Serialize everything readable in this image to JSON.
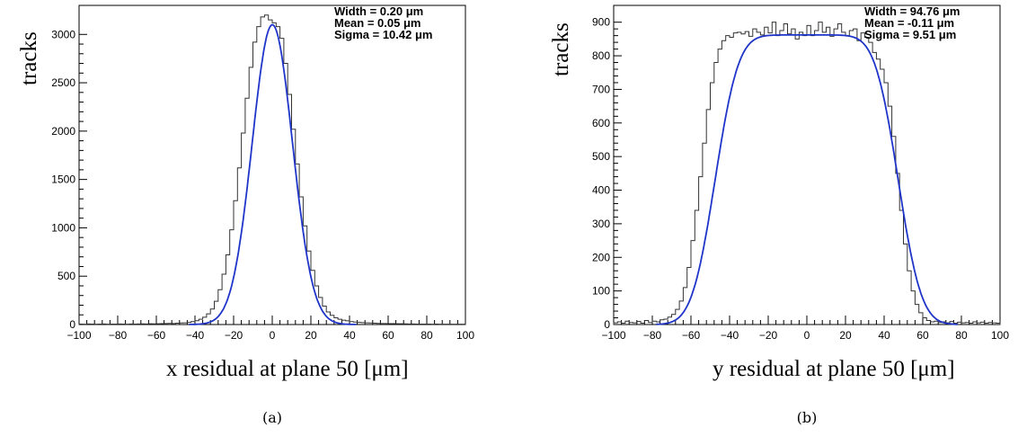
{
  "chart_data": [
    {
      "type": "histogram",
      "caption": "(a)",
      "ylabel": "tracks",
      "xlabel": "x residual at plane 50 [μm]",
      "xlim": [
        -100,
        100
      ],
      "ylim": [
        0,
        3300
      ],
      "xticks": [
        -100,
        -80,
        -60,
        -40,
        -20,
        0,
        20,
        40,
        60,
        80,
        100
      ],
      "yticks": [
        0,
        500,
        1000,
        1500,
        2000,
        2500,
        3000
      ],
      "stats": [
        "Width = 0.20 μm",
        "Mean = 0.05  μm",
        "Sigma  = 10.42 μm"
      ],
      "fit": {
        "model": "gaussian-smeared box",
        "width": 0.2,
        "mean": 0.05,
        "sigma": 10.42,
        "peak": 3100,
        "color": "#1f35c9"
      },
      "hist_bin_width": 2,
      "hist_color": "#333333",
      "series": [
        {
          "type": "histogram",
          "x": [
            -99,
            -97,
            -95,
            -93,
            -91,
            -89,
            -87,
            -85,
            -83,
            -81,
            -79,
            -77,
            -75,
            -73,
            -71,
            -69,
            -67,
            -65,
            -63,
            -61,
            -59,
            -57,
            -55,
            -53,
            -51,
            -49,
            -47,
            -45,
            -43,
            -41,
            -39,
            -37,
            -35,
            -33,
            -31,
            -29,
            -27,
            -25,
            -23,
            -21,
            -19,
            -17,
            -15,
            -13,
            -11,
            -9,
            -7,
            -5,
            -3,
            -1,
            1,
            3,
            5,
            7,
            9,
            11,
            13,
            15,
            17,
            19,
            21,
            23,
            25,
            27,
            29,
            31,
            33,
            35,
            37,
            39,
            41,
            43,
            45,
            47,
            49,
            51,
            53,
            55,
            57,
            59,
            61,
            63,
            65,
            67,
            69,
            71,
            73,
            75,
            77,
            79,
            81,
            83,
            85,
            87,
            89,
            91,
            93,
            95,
            97,
            99
          ],
          "values": [
            5,
            4,
            6,
            5,
            4,
            5,
            6,
            4,
            5,
            5,
            6,
            5,
            4,
            6,
            5,
            6,
            7,
            6,
            8,
            7,
            8,
            9,
            10,
            12,
            11,
            14,
            16,
            18,
            22,
            30,
            40,
            55,
            75,
            110,
            160,
            240,
            360,
            520,
            720,
            980,
            1280,
            1620,
            1980,
            2340,
            2660,
            2920,
            3080,
            3180,
            3200,
            3150,
            3120,
            3080,
            2960,
            2700,
            2380,
            2020,
            1660,
            1320,
            1020,
            760,
            560,
            400,
            280,
            190,
            130,
            95,
            70,
            55,
            45,
            38,
            30,
            26,
            22,
            20,
            18,
            16,
            14,
            12,
            11,
            10,
            9,
            9,
            8,
            8,
            7,
            6,
            6,
            5,
            5,
            5,
            5,
            4,
            5,
            4,
            4,
            4,
            3,
            4,
            3,
            4
          ]
        }
      ]
    },
    {
      "type": "histogram",
      "caption": "(b)",
      "ylabel": "tracks",
      "xlabel": "y residual at plane 50 [μm]",
      "xlim": [
        -100,
        100
      ],
      "ylim": [
        0,
        950
      ],
      "xticks": [
        -100,
        -80,
        -60,
        -40,
        -20,
        0,
        20,
        40,
        60,
        80,
        100
      ],
      "yticks": [
        0,
        100,
        200,
        300,
        400,
        500,
        600,
        700,
        800,
        900
      ],
      "stats": [
        "Width = 94.76 μm",
        "Mean = -0.11 μm",
        "Sigma  = 9.51 μm"
      ],
      "fit": {
        "model": "gaussian-smeared box",
        "width": 94.76,
        "mean": -0.11,
        "sigma": 9.51,
        "peak": 862,
        "color": "#1f35c9"
      },
      "hist_bin_width": 2,
      "hist_color": "#333333",
      "series": [
        {
          "type": "histogram",
          "x": [
            -99,
            -97,
            -95,
            -93,
            -91,
            -89,
            -87,
            -85,
            -83,
            -81,
            -79,
            -77,
            -75,
            -73,
            -71,
            -69,
            -67,
            -65,
            -63,
            -61,
            -59,
            -57,
            -55,
            -53,
            -51,
            -49,
            -47,
            -45,
            -43,
            -41,
            -39,
            -37,
            -35,
            -33,
            -31,
            -29,
            -27,
            -25,
            -23,
            -21,
            -19,
            -17,
            -15,
            -13,
            -11,
            -9,
            -7,
            -5,
            -3,
            -1,
            1,
            3,
            5,
            7,
            9,
            11,
            13,
            15,
            17,
            19,
            21,
            23,
            25,
            27,
            29,
            31,
            33,
            35,
            37,
            39,
            41,
            43,
            45,
            47,
            49,
            51,
            53,
            55,
            57,
            59,
            61,
            63,
            65,
            67,
            69,
            71,
            73,
            75,
            77,
            79,
            81,
            83,
            85,
            87,
            89,
            91,
            93,
            95,
            97,
            99
          ],
          "values": [
            5,
            8,
            4,
            10,
            6,
            5,
            9,
            4,
            12,
            6,
            10,
            8,
            14,
            16,
            22,
            30,
            45,
            70,
            110,
            170,
            250,
            340,
            440,
            540,
            640,
            720,
            780,
            820,
            845,
            860,
            855,
            868,
            870,
            865,
            872,
            858,
            880,
            870,
            862,
            885,
            868,
            900,
            860,
            875,
            895,
            865,
            880,
            850,
            870,
            860,
            890,
            860,
            875,
            900,
            870,
            885,
            858,
            880,
            895,
            870,
            860,
            875,
            880,
            845,
            868,
            855,
            840,
            810,
            790,
            760,
            720,
            650,
            560,
            450,
            340,
            240,
            160,
            100,
            60,
            35,
            20,
            12,
            8,
            10,
            6,
            8,
            5,
            9,
            4,
            7,
            5,
            6,
            4,
            8,
            5,
            7,
            4,
            6,
            5,
            4
          ]
        }
      ]
    }
  ]
}
